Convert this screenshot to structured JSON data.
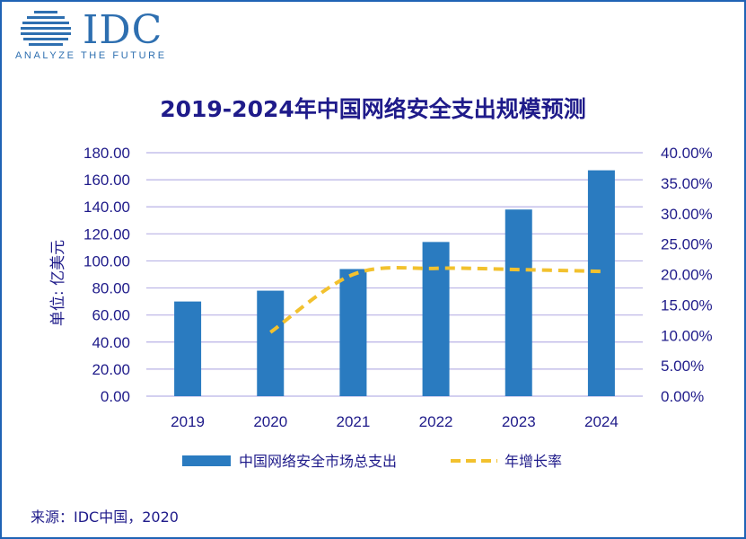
{
  "logo": {
    "text": "IDC",
    "tagline": "ANALYZE THE FUTURE"
  },
  "source": "来源：IDC中国，2020",
  "colors": {
    "bar": "#2a7bc0",
    "line": "#f2c12e",
    "text": "#1f1b8a",
    "grid": "#b9b3e6",
    "frame": "#1f63b5"
  },
  "chart_data": {
    "type": "bar",
    "title": "2019-2024年中国网络安全支出规模预测",
    "xlabel": "",
    "ylabel": "单位: 亿美元",
    "categories": [
      "2019",
      "2020",
      "2021",
      "2022",
      "2023",
      "2024"
    ],
    "ylim": [
      0,
      180
    ],
    "y2lim": [
      0,
      40
    ],
    "y_ticks": [
      "0.00",
      "20.00",
      "40.00",
      "60.00",
      "80.00",
      "100.00",
      "120.00",
      "140.00",
      "160.00",
      "180.00"
    ],
    "y2_ticks": [
      "0.00%",
      "5.00%",
      "10.00%",
      "15.00%",
      "20.00%",
      "25.00%",
      "30.00%",
      "35.00%",
      "40.00%"
    ],
    "grid": true,
    "legend_position": "bottom",
    "series": [
      {
        "name": "中国网络安全市场总支出",
        "type": "bar",
        "axis": "left",
        "values": [
          70,
          78,
          94,
          114,
          138,
          167
        ]
      },
      {
        "name": "年增长率",
        "type": "line",
        "style": "dashed",
        "axis": "right",
        "values": [
          null,
          10.5,
          20.0,
          21.0,
          20.8,
          20.5
        ]
      }
    ]
  }
}
